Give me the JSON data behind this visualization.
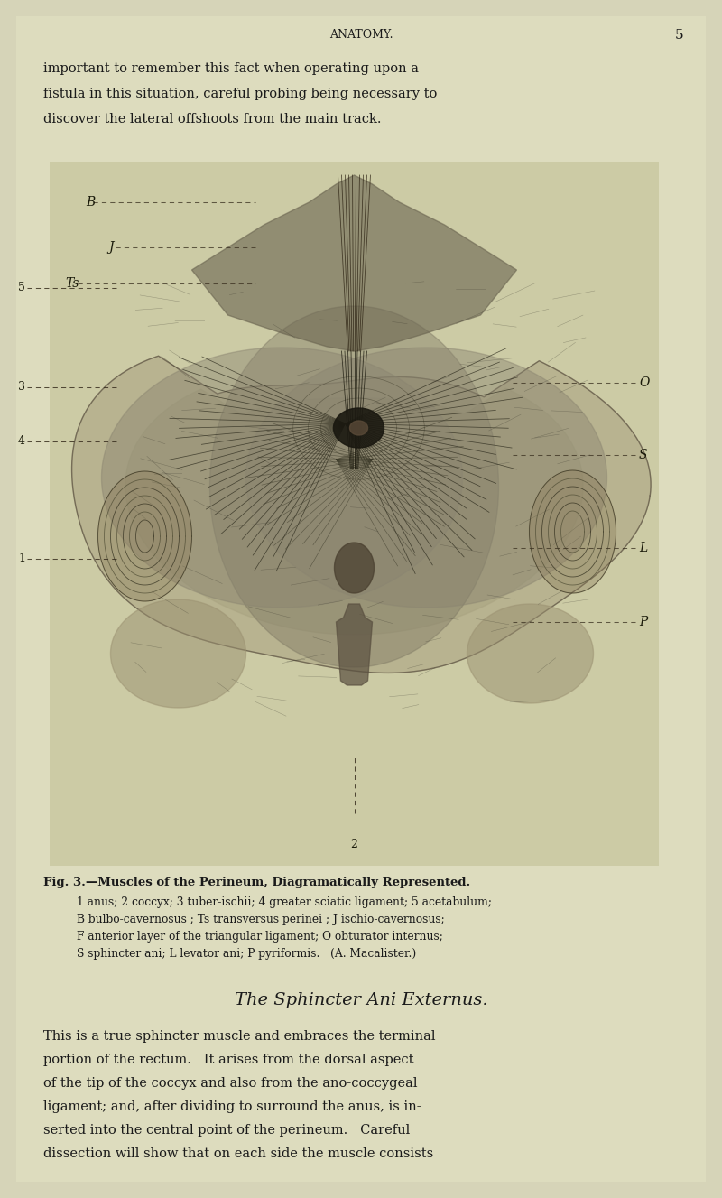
{
  "bg_color": "#d6d4b8",
  "page_color": "#dddcbe",
  "text_color": "#1a1a1a",
  "header_text": "ANATOMY.",
  "page_number": "5",
  "intro_lines": [
    "important to remember this fact when operating upon a",
    "fistula in this situation, careful probing being necessary to",
    "discover the lateral offshoots from the main track."
  ],
  "fig_caption_title": "Fig. 3.—Muscles of the Perineum, Diagramatically Represented.",
  "fig_caption_lines": [
    "1 anus; 2 coccyx; 3 tuber-ischii; 4 greater sciatic ligament; 5 acetabulum;",
    "B bulbo-cavernosus ; Ts transversus perinei ; J ischio-cavernosus;",
    "F anterior layer of the triangular ligament; O obturator internus;",
    "S sphincter ani; L levator ani; P pyriformis.   (A. Macalister.)"
  ],
  "section_title": "The Sphincter Ani Externus.",
  "body_lines": [
    "This is a true sphincter muscle and embraces the terminal",
    "portion of the rectum.   It arises from the dorsal aspect",
    "of the tip of the coccyx and also from the ano-coccygeal",
    "ligament; and, after dividing to surround the anus, is in-",
    "serted into the central point of the perineum.   Careful",
    "dissection will show that on each side the muscle consists"
  ]
}
